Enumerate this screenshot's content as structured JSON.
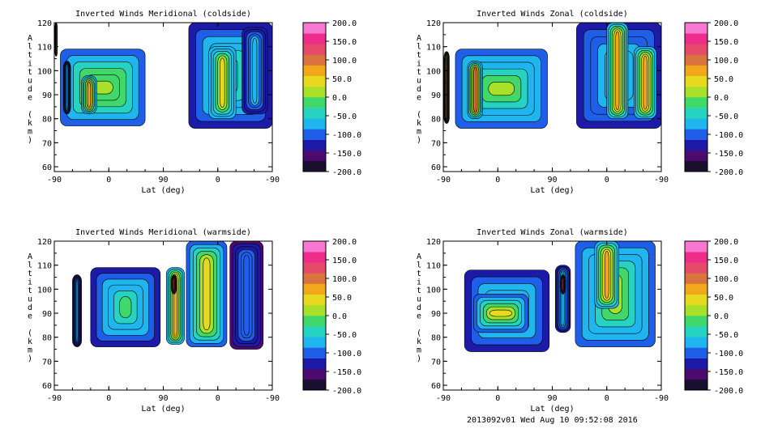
{
  "footer": "2013092v01 Wed Aug 10 09:52:08 2016",
  "colorbar": {
    "tick_labels": [
      "200.0",
      "150.0",
      "100.0",
      "50.0",
      "0.0",
      "-50.0",
      "-100.0",
      "-150.0",
      "-200.0"
    ],
    "colors": [
      "#1a0f2e",
      "#4b0a6e",
      "#1c1aa6",
      "#1f5fe8",
      "#1fb6ef",
      "#26d3c2",
      "#40d86a",
      "#a8e02a",
      "#e8d81e",
      "#f2a81b",
      "#d9743f",
      "#e54a6b",
      "#ee2d8a",
      "#f877d2"
    ]
  },
  "chart_data": [
    {
      "type": "heatmap",
      "title": "Inverted Winds Meridional (coldside)",
      "xlabel": "Lat (deg)",
      "ylabel": "Altitude (km)",
      "x_tick_labels": [
        "-90",
        "0",
        "90",
        "0",
        "-90"
      ],
      "y_ticks": [
        60,
        70,
        80,
        90,
        100,
        110,
        120
      ],
      "ylim": [
        58,
        120
      ],
      "color_range": [
        -200,
        200
      ],
      "blobs": [
        {
          "x": [
            -89,
            -85
          ],
          "y": [
            106,
            120
          ],
          "v": 150
        },
        {
          "x": [
            -80,
            60
          ],
          "y": [
            77,
            109
          ],
          "v": 20
        },
        {
          "x": [
            -45,
            -20
          ],
          "y": [
            82,
            98
          ],
          "v": 60
        },
        {
          "x": [
            -75,
            -63
          ],
          "y": [
            82,
            104
          ],
          "v": -60
        },
        {
          "x": [
            132,
            270
          ],
          "y": [
            76,
            120
          ],
          "v": -30
        },
        {
          "x": [
            165,
            210
          ],
          "y": [
            80,
            110
          ],
          "v": 50
        },
        {
          "x": [
            220,
            262
          ],
          "y": [
            82,
            118
          ],
          "v": -70
        }
      ]
    },
    {
      "type": "heatmap",
      "title": "Inverted Winds Zonal (coldside)",
      "xlabel": "Lat (deg)",
      "ylabel": "Altitude (km)",
      "x_tick_labels": [
        "-90",
        "0",
        "90",
        "0",
        "-90"
      ],
      "y_ticks": [
        60,
        70,
        80,
        90,
        100,
        110,
        120
      ],
      "ylim": [
        58,
        120
      ],
      "color_range": [
        -200,
        200
      ],
      "blobs": [
        {
          "x": [
            -89,
            -80
          ],
          "y": [
            78,
            108
          ],
          "v": 120
        },
        {
          "x": [
            -70,
            82
          ],
          "y": [
            76,
            109
          ],
          "v": 10
        },
        {
          "x": [
            -50,
            -25
          ],
          "y": [
            80,
            104
          ],
          "v": 90
        },
        {
          "x": [
            130,
            270
          ],
          "y": [
            76,
            120
          ],
          "v": -40
        },
        {
          "x": [
            180,
            215
          ],
          "y": [
            80,
            120
          ],
          "v": 60
        },
        {
          "x": [
            225,
            262
          ],
          "y": [
            80,
            110
          ],
          "v": 80
        }
      ]
    },
    {
      "type": "heatmap",
      "title": "Inverted Winds Meridional (warmside)",
      "xlabel": "Lat (deg)",
      "ylabel": "Altitude (km)",
      "x_tick_labels": [
        "-90",
        "0",
        "90",
        "0",
        "-90"
      ],
      "y_ticks": [
        60,
        70,
        80,
        90,
        100,
        110,
        120
      ],
      "ylim": [
        58,
        120
      ],
      "color_range": [
        -200,
        200
      ],
      "blobs": [
        {
          "x": [
            -30,
            85
          ],
          "y": [
            76,
            109
          ],
          "v": -20
        },
        {
          "x": [
            95,
            125
          ],
          "y": [
            77,
            109
          ],
          "v": 60
        },
        {
          "x": [
            103,
            112
          ],
          "y": [
            98,
            106
          ],
          "v": 150
        },
        {
          "x": [
            128,
            195
          ],
          "y": [
            76,
            120
          ],
          "v": 30
        },
        {
          "x": [
            200,
            255
          ],
          "y": [
            75,
            120
          ],
          "v": -90
        },
        {
          "x": [
            -60,
            -45
          ],
          "y": [
            76,
            106
          ],
          "v": -80
        }
      ]
    },
    {
      "type": "heatmap",
      "title": "Inverted Winds Zonal (warmside)",
      "xlabel": "Lat (deg)",
      "ylabel": "Altitude (km)",
      "x_tick_labels": [
        "-90",
        "0",
        "90",
        "0",
        "-90"
      ],
      "y_ticks": [
        60,
        70,
        80,
        90,
        100,
        110,
        120
      ],
      "ylim": [
        58,
        120
      ],
      "color_range": [
        -200,
        200
      ],
      "blobs": [
        {
          "x": [
            -55,
            85
          ],
          "y": [
            74,
            108
          ],
          "v": -20
        },
        {
          "x": [
            -40,
            50
          ],
          "y": [
            82,
            98
          ],
          "v": 30
        },
        {
          "x": [
            95,
            120
          ],
          "y": [
            82,
            110
          ],
          "v": -60
        },
        {
          "x": [
            103,
            112
          ],
          "y": [
            98,
            106
          ],
          "v": 150
        },
        {
          "x": [
            128,
            260
          ],
          "y": [
            76,
            120
          ],
          "v": 10
        },
        {
          "x": [
            160,
            200
          ],
          "y": [
            92,
            120
          ],
          "v": 70
        }
      ]
    }
  ]
}
